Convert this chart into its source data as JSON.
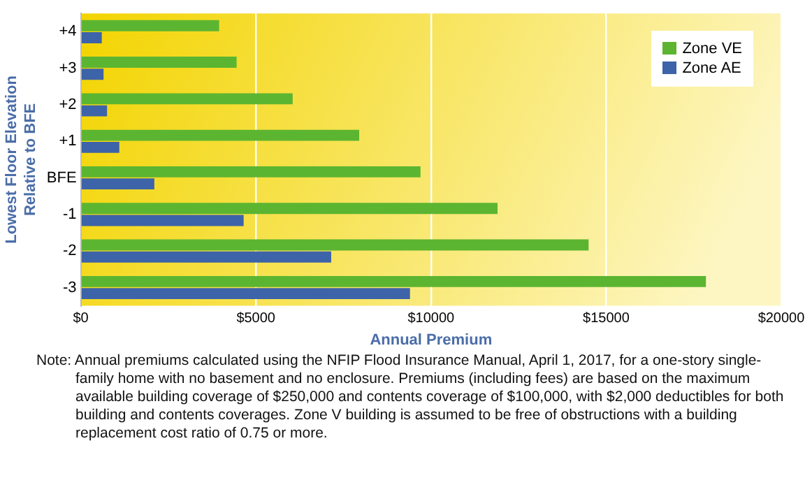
{
  "chart_data": {
    "type": "bar",
    "orientation": "horizontal",
    "categories": [
      "+4",
      "+3",
      "+2",
      "+1",
      "BFE",
      "-1",
      "-2",
      "-3"
    ],
    "series": [
      {
        "name": "Zone VE",
        "color": "#5cb531",
        "values": [
          3950,
          4450,
          6050,
          7950,
          9700,
          11900,
          14500,
          17850
        ]
      },
      {
        "name": "Zone AE",
        "color": "#3d63a8",
        "values": [
          600,
          650,
          750,
          1100,
          2100,
          4650,
          7150,
          9400
        ]
      }
    ],
    "xlim": [
      0,
      20000
    ],
    "xticks": [
      {
        "value": 0,
        "label": "$0"
      },
      {
        "value": 5000,
        "label": "$5000"
      },
      {
        "value": 10000,
        "label": "$10000"
      },
      {
        "value": 15000,
        "label": "$15000"
      },
      {
        "value": 20000,
        "label": "$20000"
      }
    ],
    "xlabel": "Annual Premium",
    "ylabel": "Lowest Floor Elevation Relative to BFE",
    "grid": "x",
    "legend": "top right",
    "annotations": [
      "Note: Annual premiums calculated using the NFIP Flood Insurance Manual, April 1, 2017, for a one-story single-family home with no basement and no enclosure. Premiums (including fees) are based on the maximum available building coverage of $250,000 and contents coverage of $100,000, with $2,000 deductibles for both building and contents coverages. Zone V building is assumed to be free of obstructions with a building replacement cost ratio of 0.75 or more."
    ]
  }
}
